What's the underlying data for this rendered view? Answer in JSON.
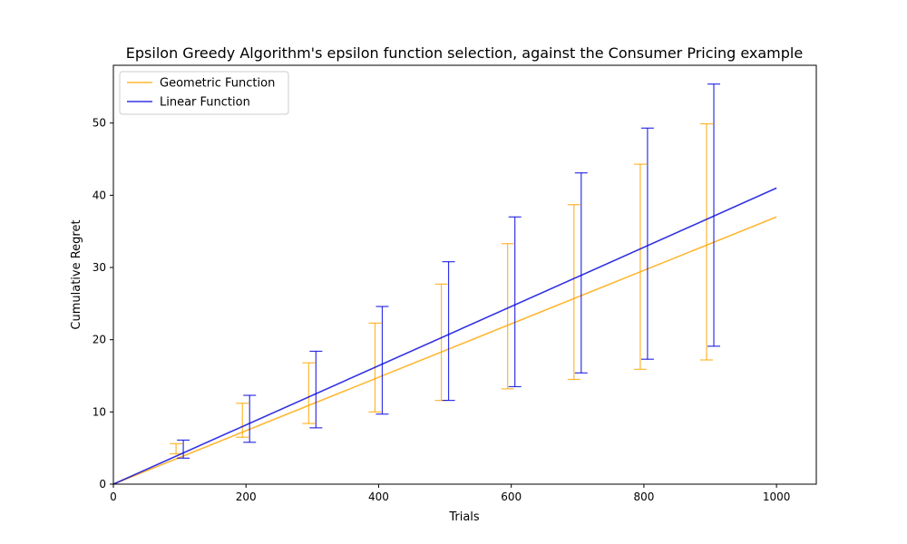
{
  "chart_data": {
    "type": "line",
    "title": "Epsilon Greedy Algorithm's epsilon function selection, against the Consumer Pricing example",
    "xlabel": "Trials",
    "ylabel": "Cumulative Regret",
    "xlim": [
      0,
      1060
    ],
    "ylim": [
      0,
      58
    ],
    "x_ticks": [
      0,
      200,
      400,
      600,
      800,
      1000
    ],
    "y_ticks": [
      0,
      10,
      20,
      30,
      40,
      50
    ],
    "grid": false,
    "legend_position": "top-left",
    "series": [
      {
        "name": "Geometric Function",
        "color": "#ffa500",
        "line": {
          "x": [
            0,
            1000
          ],
          "y": [
            0,
            37.0
          ]
        },
        "errorbars": [
          {
            "x": 100,
            "low": 4.2,
            "high": 5.6
          },
          {
            "x": 200,
            "low": 6.5,
            "high": 11.2
          },
          {
            "x": 300,
            "low": 8.4,
            "high": 16.8
          },
          {
            "x": 400,
            "low": 10.0,
            "high": 22.3
          },
          {
            "x": 500,
            "low": 11.6,
            "high": 27.7
          },
          {
            "x": 600,
            "low": 13.2,
            "high": 33.3
          },
          {
            "x": 700,
            "low": 14.5,
            "high": 38.7
          },
          {
            "x": 800,
            "low": 15.9,
            "high": 44.3
          },
          {
            "x": 900,
            "low": 17.2,
            "high": 49.9
          }
        ]
      },
      {
        "name": "Linear Function",
        "color": "#0000dd",
        "line": {
          "x": [
            0,
            1000
          ],
          "y": [
            0,
            41.0
          ]
        },
        "errorbars": [
          {
            "x": 100,
            "low": 3.6,
            "high": 6.1
          },
          {
            "x": 200,
            "low": 5.8,
            "high": 12.3
          },
          {
            "x": 300,
            "low": 7.8,
            "high": 18.4
          },
          {
            "x": 400,
            "low": 9.7,
            "high": 24.6
          },
          {
            "x": 500,
            "low": 11.6,
            "high": 30.8
          },
          {
            "x": 600,
            "low": 13.5,
            "high": 37.0
          },
          {
            "x": 700,
            "low": 15.4,
            "high": 43.1
          },
          {
            "x": 800,
            "low": 17.3,
            "high": 49.3
          },
          {
            "x": 900,
            "low": 19.1,
            "high": 55.4
          }
        ]
      }
    ]
  }
}
